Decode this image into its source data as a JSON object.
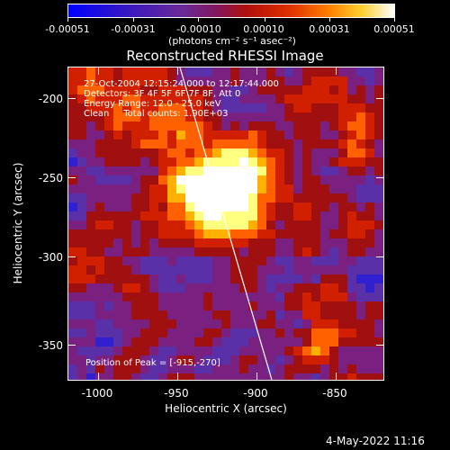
{
  "colorbar": {
    "tick_labels": [
      "-0.00051",
      "-0.00031",
      "-0.00010",
      "0.00010",
      "0.00031",
      "0.00051"
    ],
    "units": "(photons cm⁻² s⁻¹ asec⁻²)"
  },
  "title": "Reconstructed RHESSI Image",
  "annotations": {
    "line1": "27-Oct-2004 12:15:24.000 to 12:17:44.000",
    "line2": "Detectors: 3F 4F 5F 6F 7F 8F, Att 0",
    "line3": "Energy Range: 12.0 - 25.0 keV",
    "line4": "Clean     Total counts: 1.90E+03",
    "peak": "Position of Peak = [-915,-270]"
  },
  "axes": {
    "x_title": "Heliocentric X (arcsec)",
    "y_title": "Heliocentric Y (arcsec)",
    "x_ticks": [
      "-1000",
      "-950",
      "-900",
      "-850"
    ],
    "y_ticks": [
      "-200",
      "-250",
      "-300",
      "-350"
    ]
  },
  "footer": "4-May-2022 11:16",
  "colors": {
    "background": "#000000",
    "foreground": "#ffffff",
    "colormap": [
      "#0000ff",
      "#3020d0",
      "#5a30a8",
      "#7a2080",
      "#a01010",
      "#d02000",
      "#ff6000",
      "#ffb000",
      "#ffff80",
      "#ffffff"
    ]
  }
}
